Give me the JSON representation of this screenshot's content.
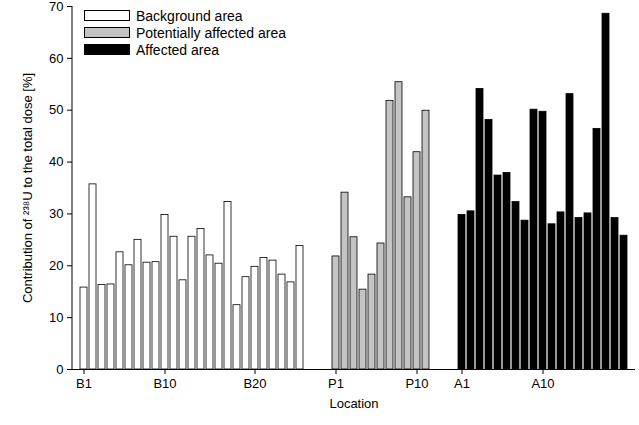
{
  "chart_data": {
    "type": "bar",
    "x_label": "Location",
    "y_label": "Contribution of ²³⁸U to the total dose [%]",
    "categories": [
      "B1",
      null,
      null,
      null,
      null,
      null,
      null,
      null,
      null,
      "B10",
      null,
      null,
      null,
      null,
      null,
      null,
      null,
      null,
      null,
      "B20",
      null,
      null,
      null,
      null,
      null,
      null,
      null,
      null,
      "P1",
      null,
      null,
      null,
      null,
      null,
      null,
      null,
      null,
      "P10",
      null,
      null,
      null,
      null,
      "A1",
      null,
      null,
      null,
      null,
      null,
      null,
      null,
      null,
      "A10",
      null,
      null,
      null,
      null,
      null,
      null,
      null,
      null,
      null
    ],
    "series": [
      {
        "name": "Background area",
        "color": "#ffffff",
        "values": [
          15.8,
          35.7,
          16.3,
          16.4,
          22.6,
          20.1,
          25.0,
          20.6,
          20.7,
          29.8,
          25.6,
          17.2,
          25.6,
          27.1,
          22.0,
          20.4,
          32.3,
          12.4,
          17.8,
          19.8,
          21.5,
          21.0,
          18.3,
          16.8,
          23.8,
          null,
          null,
          null,
          null,
          null,
          null,
          null,
          null,
          null,
          null,
          null,
          null,
          null,
          null,
          null,
          null,
          null,
          null,
          null,
          null,
          null,
          null,
          null,
          null,
          null,
          null,
          null,
          null,
          null,
          null,
          null,
          null,
          null,
          null,
          null,
          null
        ]
      },
      {
        "name": "Potentially affected area",
        "color": "#c4c4c4",
        "values": [
          null,
          null,
          null,
          null,
          null,
          null,
          null,
          null,
          null,
          null,
          null,
          null,
          null,
          null,
          null,
          null,
          null,
          null,
          null,
          null,
          null,
          null,
          null,
          null,
          null,
          null,
          null,
          null,
          21.8,
          34.1,
          25.5,
          15.4,
          18.3,
          24.3,
          51.8,
          55.4,
          33.2,
          41.9,
          49.9,
          null,
          null,
          null,
          null,
          null,
          null,
          null,
          null,
          null,
          null,
          null,
          null,
          null,
          null,
          null,
          null,
          null,
          null,
          null,
          null,
          null,
          null
        ]
      },
      {
        "name": "Affected area",
        "color": "#000000",
        "values": [
          null,
          null,
          null,
          null,
          null,
          null,
          null,
          null,
          null,
          null,
          null,
          null,
          null,
          null,
          null,
          null,
          null,
          null,
          null,
          null,
          null,
          null,
          null,
          null,
          null,
          null,
          null,
          null,
          null,
          null,
          null,
          null,
          null,
          null,
          null,
          null,
          null,
          null,
          null,
          null,
          null,
          null,
          29.8,
          30.5,
          54.1,
          48.1,
          37.4,
          37.9,
          32.3,
          28.7,
          50.1,
          49.7,
          28.0,
          30.3,
          53.1,
          29.2,
          30.1,
          46.4,
          68.6,
          29.2,
          25.8
        ]
      }
    ],
    "ylim": [
      0,
      70
    ],
    "yticks": [
      0,
      10,
      20,
      30,
      40,
      50,
      60,
      70
    ],
    "grid": false,
    "legend": "top-left"
  }
}
